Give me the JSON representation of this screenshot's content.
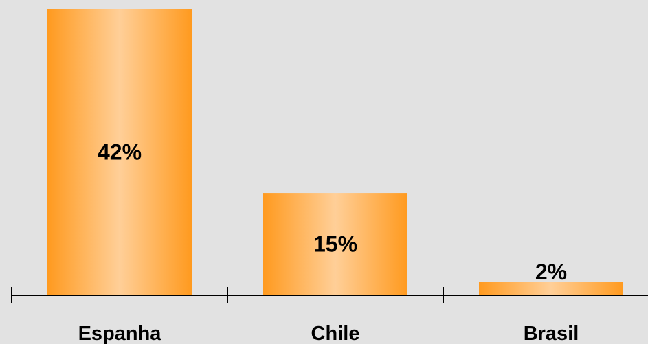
{
  "chart_data": {
    "type": "bar",
    "categories": [
      "Espanha",
      "Chile",
      "Brasil"
    ],
    "values": [
      42,
      15,
      2
    ],
    "value_labels": [
      "42%",
      "15%",
      "2%"
    ],
    "title": "",
    "xlabel": "",
    "ylabel": "",
    "ylim": [
      0,
      42
    ],
    "grid": false,
    "legend": "none"
  },
  "colors": {
    "background": "#e2e2e2",
    "bar_edge": "#ff9a1f",
    "bar_center": "#ffcf98",
    "axis": "#000000",
    "text": "#000000"
  }
}
